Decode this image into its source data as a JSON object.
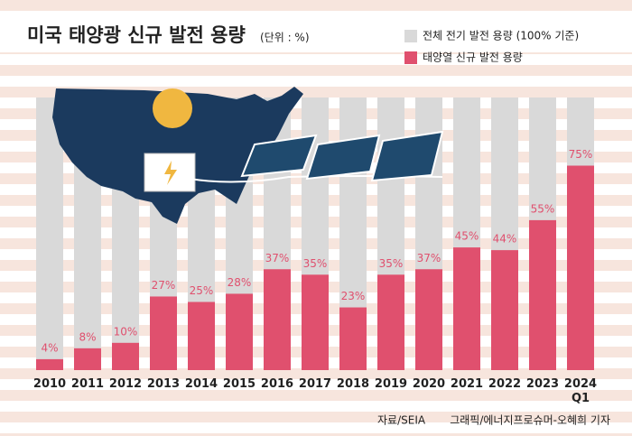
{
  "chart_data": {
    "type": "bar",
    "title": "미국 태양광 신규 발전 용량",
    "subtitle": "(단위 : %)",
    "categories": [
      "2010",
      "2011",
      "2012",
      "2013",
      "2014",
      "2015",
      "2016",
      "2017",
      "2018",
      "2019",
      "2020",
      "2021",
      "2022",
      "2023",
      "2024\nQ1"
    ],
    "series": [
      {
        "name": "전체 전기 발전 용량 (100% 기준)",
        "color": "#d9d9d9",
        "values": [
          100,
          100,
          100,
          100,
          100,
          100,
          100,
          100,
          100,
          100,
          100,
          100,
          100,
          100,
          100
        ]
      },
      {
        "name": "태양열 신규 발전 용량",
        "color": "#e0506e",
        "values": [
          4,
          8,
          10,
          27,
          25,
          28,
          37,
          35,
          23,
          35,
          37,
          45,
          44,
          55,
          75
        ],
        "value_labels": [
          "4%",
          "8%",
          "10%",
          "27%",
          "25%",
          "28%",
          "37%",
          "35%",
          "23%",
          "35%",
          "37%",
          "45%",
          "44%",
          "55%",
          "75%"
        ]
      }
    ],
    "ylim": [
      0,
      100
    ],
    "legend": "top-right",
    "notes": {
      "source": "자료/SEIA",
      "credit": "그래픽/에너지프로슈머-오혜희 기자"
    }
  }
}
